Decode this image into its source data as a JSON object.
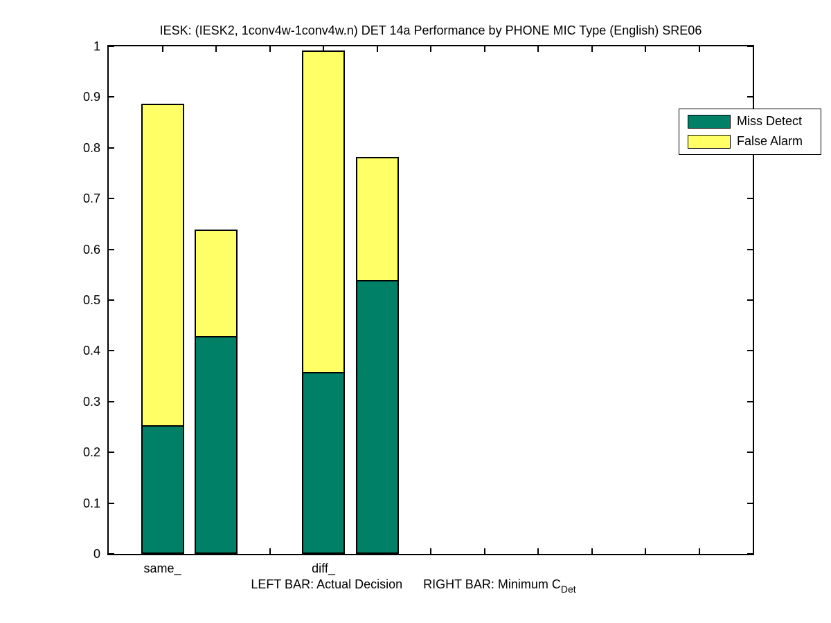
{
  "title": "IESK: (IESK2, 1conv4w-1conv4w.n) DET 14a Performance by PHONE MIC Type (English) SRE06",
  "legend": {
    "items": [
      {
        "label": "Miss Detect",
        "color": "#008066"
      },
      {
        "label": "False Alarm",
        "color": "#FFFF66"
      }
    ]
  },
  "footnote": {
    "left": "LEFT BAR: Actual Decision",
    "right": "RIGHT BAR: Minimum C",
    "right_subscript": "Det"
  },
  "chart_data": {
    "type": "bar",
    "stacked": true,
    "title": "IESK: (IESK2, 1conv4w-1conv4w.n) DET 14a Performance by PHONE MIC Type (English) SRE06",
    "categories": [
      "same_",
      "diff_"
    ],
    "series": [
      {
        "name": "Miss Detect",
        "color": "#008066",
        "values": [
          0.253,
          0.429,
          0.358,
          0.54
        ]
      },
      {
        "name": "False Alarm",
        "color": "#FFFF66",
        "values": [
          0.634,
          0.21,
          0.634,
          0.242
        ]
      }
    ],
    "bars": [
      {
        "group": "same_",
        "bar": "actual_decision",
        "x": 1,
        "miss_detect": 0.253,
        "false_alarm": 0.634,
        "total": 0.887
      },
      {
        "group": "same_",
        "bar": "minimum_cdet",
        "x": 2,
        "miss_detect": 0.429,
        "false_alarm": 0.21,
        "total": 0.639
      },
      {
        "group": "diff_",
        "bar": "actual_decision",
        "x": 4,
        "miss_detect": 0.358,
        "false_alarm": 0.634,
        "total": 0.992
      },
      {
        "group": "diff_",
        "bar": "minimum_cdet",
        "x": 5,
        "miss_detect": 0.54,
        "false_alarm": 0.242,
        "total": 0.782
      }
    ],
    "bar_width_units": 0.8,
    "x_range": [
      0,
      12
    ],
    "x_ticks": [
      1,
      2,
      3,
      4,
      5,
      6,
      7,
      8,
      9,
      10,
      11
    ],
    "ylim": [
      0,
      1
    ],
    "y_ticks": [
      0,
      0.1,
      0.2,
      0.3,
      0.4,
      0.5,
      0.6,
      0.7,
      0.8,
      0.9,
      1
    ],
    "y_tick_labels": [
      "0",
      "0.1",
      "0.2",
      "0.3",
      "0.4",
      "0.5",
      "0.6",
      "0.7",
      "0.8",
      "0.9",
      "1"
    ],
    "group_labels": [
      {
        "label": "same_",
        "x": 1
      },
      {
        "label": "diff_",
        "x": 4
      }
    ],
    "grid": false,
    "legend_position": "top-right",
    "bar_meaning_note": "LEFT BAR: Actual Decision      RIGHT BAR: Minimum C_Det"
  }
}
